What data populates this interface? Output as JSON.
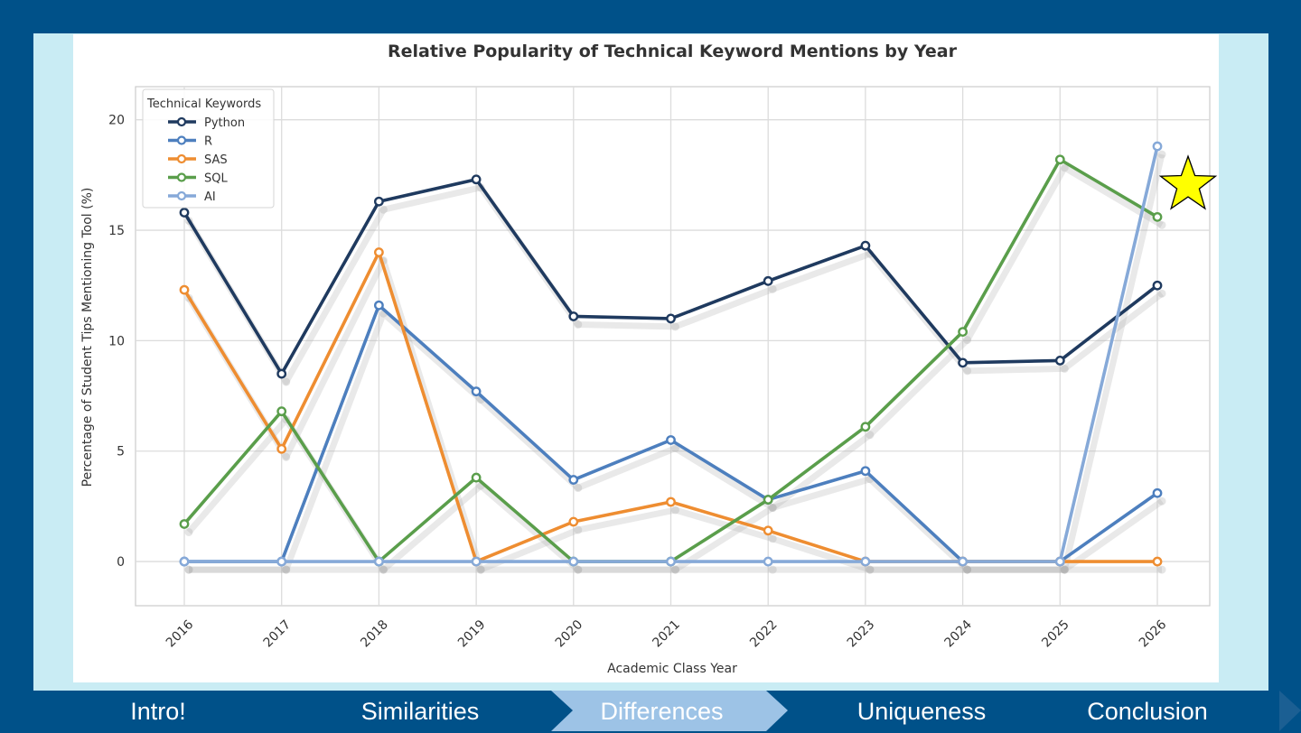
{
  "chart_data": {
    "type": "line",
    "title": "Relative Popularity of Technical Keyword Mentions by Year",
    "xlabel": "Academic Class Year",
    "ylabel": "Percentage of Student Tips Mentioning Tool (%)",
    "x": [
      "2016",
      "2017",
      "2018",
      "2019",
      "2020",
      "2021",
      "2022",
      "2023",
      "2024",
      "2025",
      "2026"
    ],
    "ylim": [
      -2,
      21.5
    ],
    "yticks": [
      0,
      5,
      10,
      15,
      20
    ],
    "grid": true,
    "legend": {
      "title": "Technical Keywords",
      "position": "top-left"
    },
    "series": [
      {
        "name": "Python",
        "color": "#1f3a5f",
        "values": [
          15.8,
          8.5,
          16.3,
          17.3,
          11.1,
          11.0,
          12.7,
          14.3,
          9.0,
          9.1,
          12.5
        ]
      },
      {
        "name": "R",
        "color": "#4d7fbe",
        "values": [
          0,
          0,
          11.6,
          7.7,
          3.7,
          5.5,
          2.8,
          4.1,
          0,
          0,
          3.1
        ]
      },
      {
        "name": "SAS",
        "color": "#ee8d31",
        "values": [
          12.3,
          5.1,
          14.0,
          0,
          1.8,
          2.7,
          1.4,
          0,
          0,
          0,
          0
        ]
      },
      {
        "name": "SQL",
        "color": "#5a9e4b",
        "values": [
          1.7,
          6.8,
          0,
          3.8,
          0,
          0,
          2.8,
          6.1,
          10.4,
          18.2,
          15.6
        ]
      },
      {
        "name": "AI",
        "color": "#86a9d8",
        "values": [
          0,
          0,
          0,
          0,
          0,
          0,
          0,
          0,
          0,
          0,
          18.8
        ]
      }
    ],
    "annotation_marker": {
      "shape": "star",
      "color": "#ffff00",
      "series": "AI",
      "x": "2026"
    }
  },
  "nav": {
    "items": [
      {
        "label": "Intro!"
      },
      {
        "label": "Similarities"
      },
      {
        "label": "Differences",
        "active": true
      },
      {
        "label": "Uniqueness"
      },
      {
        "label": "Conclusion"
      }
    ],
    "active_color": "#9dc3e6"
  }
}
